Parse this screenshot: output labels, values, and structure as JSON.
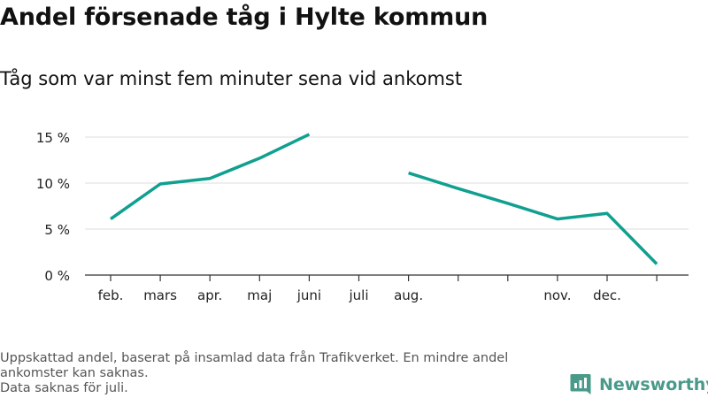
{
  "header": {
    "title": "Andel försenade tåg i Hylte kommun",
    "subtitle": "Tåg som var minst fem minuter sena vid ankomst"
  },
  "footer": {
    "note_lines": [
      "Uppskattad andel, baserat på insamlad data från Trafikverket. En mindre andel",
      "ankomster kan saknas.",
      "Data saknas för juli."
    ],
    "brand": "Newsworthy"
  },
  "colors": {
    "line": "#10a090",
    "grid": "#dddddd",
    "axis": "#333333",
    "brand": "#4a9a8a"
  },
  "chart_data": {
    "type": "line",
    "title": "Andel försenade tåg i Hylte kommun",
    "subtitle": "Tåg som var minst fem minuter sena vid ankomst",
    "xlabel": "",
    "ylabel": "",
    "categories": [
      "feb.",
      "mars",
      "apr.",
      "maj",
      "juni",
      "juli",
      "aug.",
      "",
      "",
      "nov.",
      "dec.",
      ""
    ],
    "series": [
      {
        "values": [
          6.1,
          9.9,
          10.5,
          12.7,
          15.3,
          null,
          11.1,
          9.4,
          7.8,
          6.1,
          6.7,
          1.2
        ]
      }
    ],
    "yticks": [
      0,
      5,
      10,
      15
    ],
    "ytick_labels": [
      "0 %",
      "5 %",
      "10 %",
      "15 %"
    ],
    "ylim": [
      0,
      17
    ],
    "grid": true,
    "legend": "none"
  }
}
